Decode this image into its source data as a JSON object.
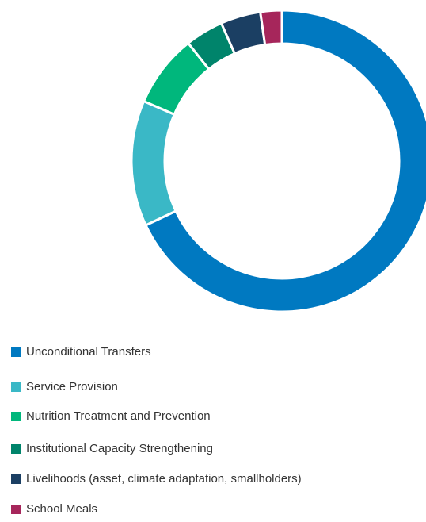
{
  "chart_data": {
    "type": "donut",
    "categories": [
      "Unconditional Transfers",
      "Service Provision",
      "Nutrition Treatment and Prevention",
      "Institutional Capacity Strengthening",
      "Livelihoods (asset, climate adaptation, smallholders)",
      "School Meals"
    ],
    "values": [
      68,
      13.5,
      7.8,
      4.1,
      4.3,
      2.3
    ],
    "colors": [
      "#0079c1",
      "#3ab8c6",
      "#00b77c",
      "#00846b",
      "#1b3f63",
      "#a6265b"
    ],
    "legend": "bottom-left"
  }
}
